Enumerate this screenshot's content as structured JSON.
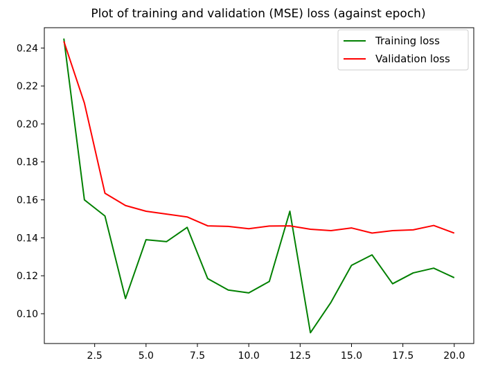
{
  "chart_data": {
    "type": "line",
    "title": "Plot of training and validation (MSE) loss (against epoch)",
    "xlabel": "",
    "ylabel": "",
    "x": [
      1,
      2,
      3,
      4,
      5,
      6,
      7,
      8,
      9,
      10,
      11,
      12,
      13,
      14,
      15,
      16,
      17,
      18,
      19,
      20
    ],
    "xlim": [
      0.05,
      20.95
    ],
    "ylim": [
      0.0843,
      0.2507
    ],
    "xticks": [
      2.5,
      5.0,
      7.5,
      10.0,
      12.5,
      15.0,
      17.5,
      20.0
    ],
    "xtick_labels": [
      "2.5",
      "5.0",
      "7.5",
      "10.0",
      "12.5",
      "15.0",
      "17.5",
      "20.0"
    ],
    "yticks": [
      0.1,
      0.12,
      0.14,
      0.16,
      0.18,
      0.2,
      0.22,
      0.24
    ],
    "ytick_labels": [
      "0.10",
      "0.12",
      "0.14",
      "0.16",
      "0.18",
      "0.20",
      "0.22",
      "0.24"
    ],
    "grid": false,
    "legend_position": "top-right",
    "series": [
      {
        "name": "Training loss",
        "color": "#008000",
        "values": [
          0.245,
          0.16,
          0.1515,
          0.108,
          0.139,
          0.138,
          0.1455,
          0.1185,
          0.1125,
          0.111,
          0.117,
          0.154,
          0.09,
          0.106,
          0.1255,
          0.131,
          0.1158,
          0.1215,
          0.124,
          0.119
        ]
      },
      {
        "name": "Validation loss",
        "color": "#ff0000",
        "values": [
          0.2435,
          0.211,
          0.1635,
          0.157,
          0.154,
          0.1525,
          0.151,
          0.1463,
          0.146,
          0.1448,
          0.1462,
          0.1463,
          0.1445,
          0.1438,
          0.1452,
          0.1425,
          0.1438,
          0.1442,
          0.1465,
          0.1425
        ]
      }
    ]
  }
}
